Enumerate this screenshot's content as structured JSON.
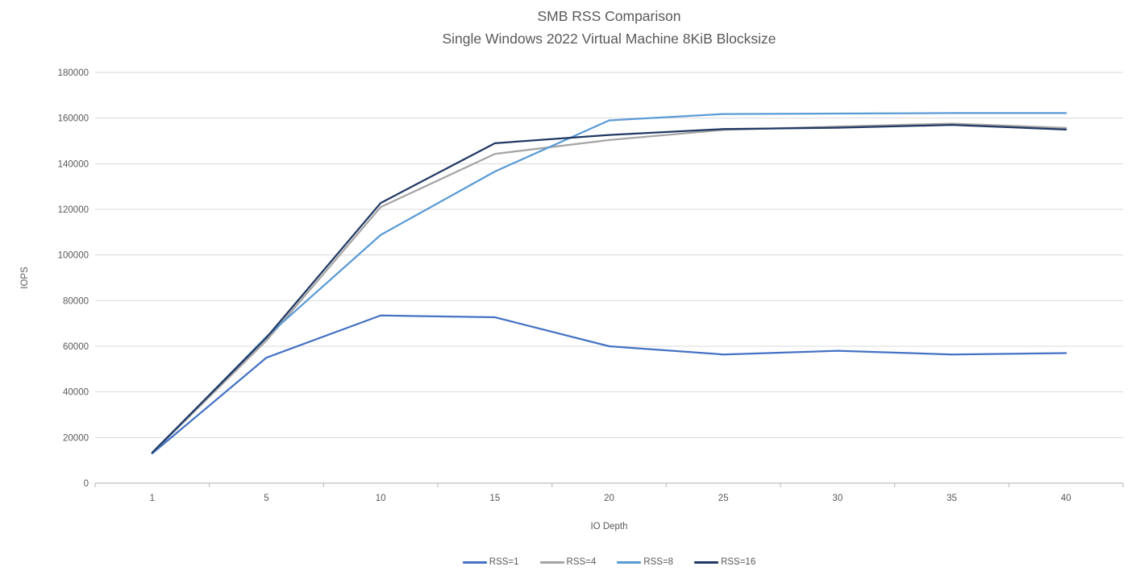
{
  "title": "SMB RSS Comparison",
  "subtitle": "Single Windows 2022 Virtual Machine 8KiB Blocksize",
  "colors": {
    "title_text": "#595959",
    "axis_text": "#595959",
    "gridline": "#D9D9D9",
    "axis_line": "#BFBFBF",
    "background": "#FFFFFF"
  },
  "chart_data": {
    "type": "line",
    "title": "SMB RSS Comparison",
    "subtitle": "Single Windows 2022 Virtual Machine 8KiB Blocksize",
    "xlabel": "IO Depth",
    "ylabel": "IOPS",
    "categories": [
      "1",
      "5",
      "10",
      "15",
      "20",
      "25",
      "30",
      "35",
      "40"
    ],
    "series": [
      {
        "name": "RSS=1",
        "color": "#4472C4",
        "values": [
          13000,
          55000,
          73500,
          72700,
          60000,
          56400,
          58000,
          56400,
          57000
        ]
      },
      {
        "name": "RSS=4",
        "color": "#A5A5A5",
        "values": [
          13200,
          62500,
          121000,
          144300,
          150400,
          154800,
          156300,
          157600,
          155700
        ]
      },
      {
        "name": "RSS=8",
        "color": "#5B9BD5",
        "values": [
          13100,
          64200,
          108800,
          136600,
          159000,
          161800,
          162000,
          162200,
          162200
        ]
      },
      {
        "name": "RSS=16",
        "color": "#203864",
        "values": [
          13400,
          63800,
          122800,
          149000,
          152600,
          155200,
          155800,
          157000,
          155000
        ]
      }
    ],
    "ylim": [
      0,
      180000
    ],
    "ytick_step": 20000,
    "grid": "horizontal",
    "legend_position": "bottom",
    "marker": "none"
  }
}
